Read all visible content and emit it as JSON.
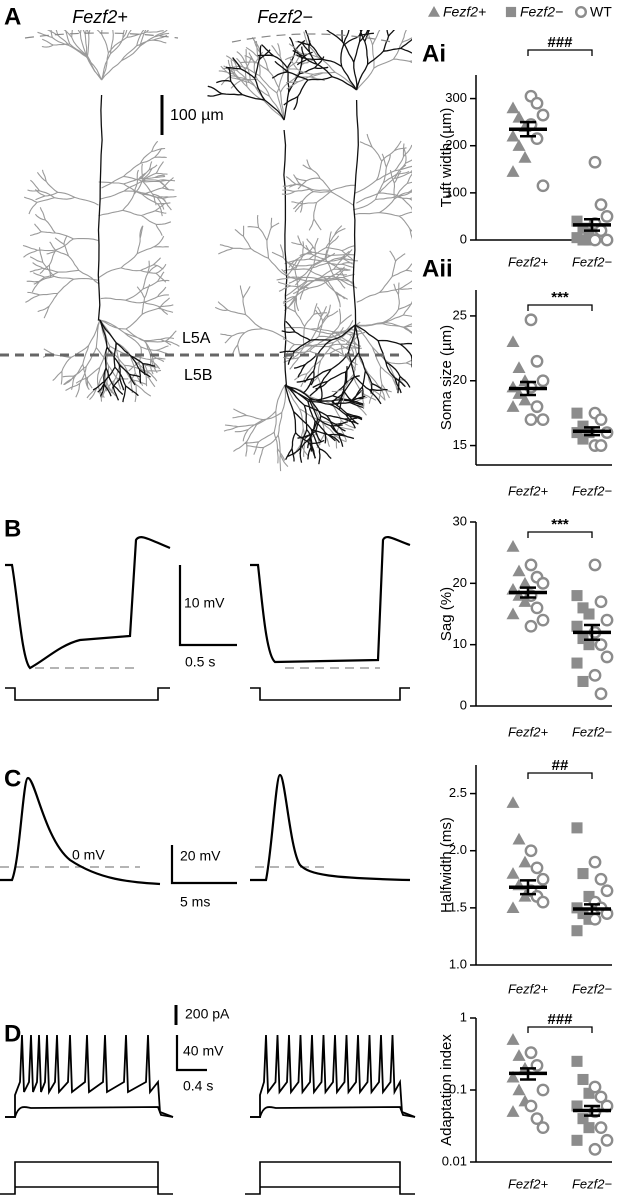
{
  "figure": {
    "panel_labels": [
      "A",
      "B",
      "C",
      "D"
    ],
    "genotypes": [
      "Fezf2+",
      "Fezf2−"
    ],
    "layers": [
      "L5A",
      "L5B"
    ],
    "scale_bars": [
      "100 µm",
      "10 mV",
      "0.5 s",
      "20 mV",
      "5 ms",
      "200 pA",
      "40 mV",
      "0.4 s"
    ],
    "zero_line": "0 mV"
  },
  "legend": [
    {
      "label": "Fezf2+",
      "marker": "triangle",
      "color": "#8c8c8c"
    },
    {
      "label": "Fezf2−",
      "marker": "square",
      "color": "#8c8c8c"
    },
    {
      "label": "WT",
      "marker": "circle",
      "color": "#8c8c8c"
    }
  ],
  "chart_data": [
    {
      "type": "dot",
      "title": "Ai",
      "ylabel": "Tuft width (µm)",
      "categories": [
        "Fezf2+",
        "Fezf2−"
      ],
      "ylim": [
        0,
        350
      ],
      "yticks": [
        0,
        100,
        200,
        300
      ],
      "significance": "###",
      "groups": [
        {
          "category": 0,
          "legend": 0,
          "values": [
            280,
            260,
            240,
            220,
            200,
            175,
            145
          ]
        },
        {
          "category": 0,
          "legend": 2,
          "values": [
            305,
            290,
            265,
            245,
            215,
            115
          ]
        },
        {
          "category": 1,
          "legend": 1,
          "values": [
            40,
            25,
            15,
            5,
            0,
            0
          ]
        },
        {
          "category": 1,
          "legend": 2,
          "values": [
            165,
            75,
            50,
            35,
            20,
            0,
            0
          ]
        }
      ],
      "mean": [
        235,
        32
      ],
      "sem": [
        15,
        12
      ]
    },
    {
      "type": "dot",
      "title": "Aii",
      "ylabel": "Soma size (µm)",
      "categories": [
        "Fezf2+",
        "Fezf2−"
      ],
      "ylim": [
        13.5,
        27
      ],
      "yticks": [
        15,
        20,
        25
      ],
      "significance": "***",
      "groups": [
        {
          "category": 0,
          "legend": 0,
          "values": [
            23,
            21,
            20,
            19.5,
            19,
            18.5,
            18
          ]
        },
        {
          "category": 0,
          "legend": 2,
          "values": [
            24.7,
            21.5,
            20,
            19.5,
            18,
            17,
            17
          ]
        },
        {
          "category": 1,
          "legend": 1,
          "values": [
            17.5,
            16.5,
            16,
            16,
            15.5
          ]
        },
        {
          "category": 1,
          "legend": 2,
          "values": [
            17.5,
            17,
            16,
            15,
            15
          ]
        }
      ],
      "mean": [
        19.4,
        16.1
      ],
      "sem": [
        0.5,
        0.3
      ]
    },
    {
      "type": "dot",
      "ylabel": "Sag (%)",
      "categories": [
        "Fezf2+",
        "Fezf2−"
      ],
      "ylim": [
        0,
        30
      ],
      "yticks": [
        0,
        10,
        20,
        30
      ],
      "significance": "***",
      "groups": [
        {
          "category": 0,
          "legend": 0,
          "values": [
            26,
            22,
            20,
            19,
            18,
            17,
            15
          ]
        },
        {
          "category": 0,
          "legend": 2,
          "values": [
            23,
            21,
            20,
            18,
            16,
            14,
            13
          ]
        },
        {
          "category": 1,
          "legend": 1,
          "values": [
            18,
            16,
            15,
            13,
            11,
            10,
            7,
            4
          ]
        },
        {
          "category": 1,
          "legend": 2,
          "values": [
            23,
            17,
            14,
            12,
            10,
            8,
            5,
            2
          ]
        }
      ],
      "mean": [
        18.5,
        12
      ],
      "sem": [
        0.8,
        1.2
      ]
    },
    {
      "type": "dot",
      "ylabel": "Halfwidth (ms)",
      "categories": [
        "Fezf2+",
        "Fezf2−"
      ],
      "ylim": [
        1,
        2.75
      ],
      "yticks": [
        {
          "value": 1,
          "label": "1.0"
        },
        1.5,
        {
          "value": 2,
          "label": "2.0"
        },
        2.5
      ],
      "significance": "##",
      "groups": [
        {
          "category": 0,
          "legend": 0,
          "values": [
            2.42,
            2.1,
            1.9,
            1.8,
            1.7,
            1.6,
            1.5
          ]
        },
        {
          "category": 0,
          "legend": 2,
          "values": [
            2,
            1.85,
            1.75,
            1.65,
            1.6,
            1.55
          ]
        },
        {
          "category": 1,
          "legend": 1,
          "values": [
            2.2,
            1.8,
            1.6,
            1.5,
            1.45,
            1.4,
            1.3
          ]
        },
        {
          "category": 1,
          "legend": 2,
          "values": [
            1.9,
            1.75,
            1.65,
            1.55,
            1.5,
            1.45,
            1.4
          ]
        }
      ],
      "mean": [
        1.68,
        1.49
      ],
      "sem": [
        0.06,
        0.04
      ]
    },
    {
      "type": "dot",
      "ylabel": "Adaptation index",
      "categories": [
        "Fezf2+",
        "Fezf2−"
      ],
      "log": true,
      "ylim": [
        0.01,
        1
      ],
      "yticks": [
        0.01,
        0.1,
        1
      ],
      "significance": "###",
      "groups": [
        {
          "category": 0,
          "legend": 0,
          "values": [
            0.5,
            0.3,
            0.2,
            0.15,
            0.1,
            0.07,
            0.05
          ]
        },
        {
          "category": 0,
          "legend": 2,
          "values": [
            0.33,
            0.22,
            0.1,
            0.06,
            0.04,
            0.03
          ]
        },
        {
          "category": 1,
          "legend": 1,
          "values": [
            0.25,
            0.14,
            0.09,
            0.06,
            0.04,
            0.03,
            0.02
          ]
        },
        {
          "category": 1,
          "legend": 2,
          "values": [
            0.11,
            0.08,
            0.06,
            0.05,
            0.03,
            0.02,
            0.015
          ]
        }
      ],
      "mean": [
        0.17,
        0.052
      ],
      "sem": [
        0.03,
        0.008
      ]
    }
  ]
}
